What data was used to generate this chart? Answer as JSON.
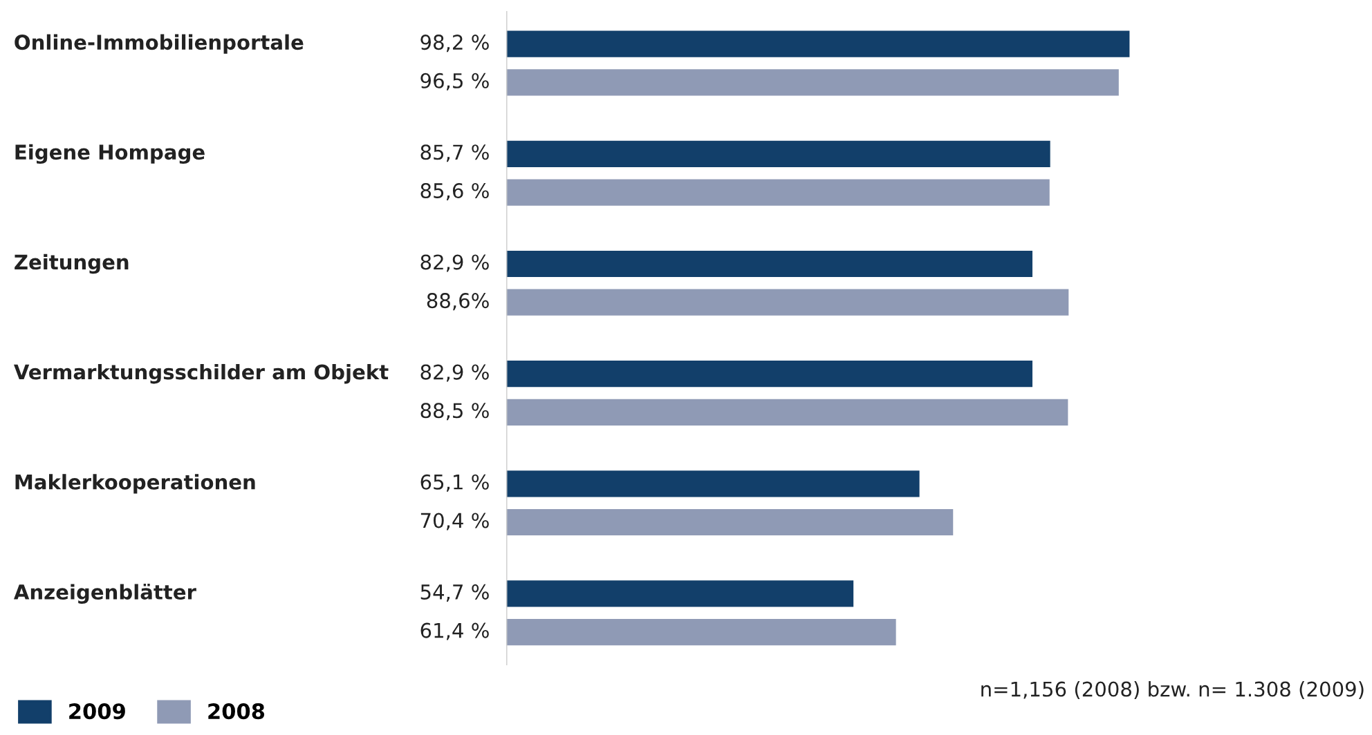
{
  "chart_data": {
    "type": "bar",
    "orientation": "horizontal",
    "categories": [
      "Online-Immobilienportale",
      "Eigene Hompage",
      "Zeitungen",
      "Vermarktungsschilder am Objekt",
      "Maklerkooperationen",
      "Anzeigenblätter"
    ],
    "series": [
      {
        "name": "2009",
        "color": "#123f6a",
        "values": [
          98.2,
          85.7,
          82.9,
          82.9,
          65.1,
          54.7
        ],
        "value_labels": [
          "98,2 %",
          "85,7 %",
          "82,9 %",
          "82,9 %",
          "65,1 %",
          "54,7 %"
        ]
      },
      {
        "name": "2008",
        "color": "#8f9ab5",
        "values": [
          96.5,
          85.6,
          88.6,
          88.5,
          70.4,
          61.4
        ],
        "value_labels": [
          "96,5 %",
          "85,6 %",
          "88,6%",
          "88,5 %",
          "70,4 %",
          "61,4 %"
        ]
      }
    ],
    "tick_labels": false,
    "legend": "bottom left",
    "annotations": [
      "n=1,156 (2008) bzw. n= 1.308 (2009)"
    ]
  }
}
